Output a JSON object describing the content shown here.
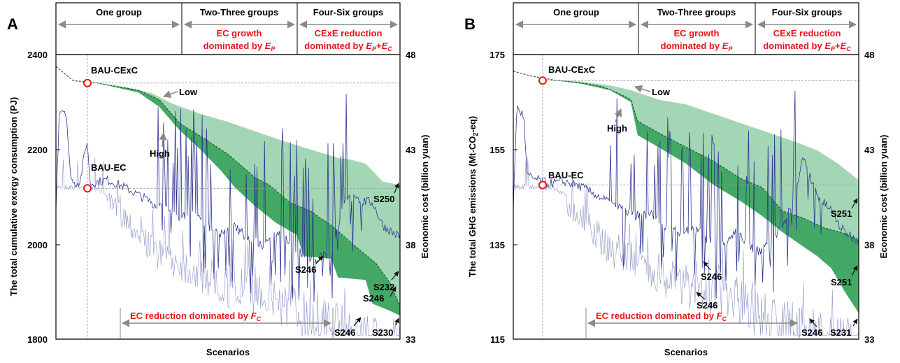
{
  "panels": [
    {
      "label": "A",
      "y_label": "The total cumulative exergy consumption (PJ)",
      "y2_label": "Economic cost (billion yuan)",
      "x_label": "Scenarios",
      "y_ticks": [
        "2400",
        "2200",
        "2000",
        "1800"
      ],
      "y2_ticks": [
        "48",
        "43",
        "38",
        "33"
      ],
      "groups": [
        "One group",
        "Two-Three groups",
        "Four-Six groups"
      ],
      "band_text": {
        "ec_growth_1": "EC growth",
        "ec_growth_2": "dominated by ",
        "ec_growth_sym": "E",
        "ec_growth_sub": "P",
        "cexe_1": "CExE reduction",
        "cexe_2": "dominated by ",
        "cexe_sym1": "E",
        "cexe_sub1": "P",
        "cexe_plus": "+",
        "cexe_sym2": "E",
        "cexe_sub2": "C"
      },
      "ec_reduction": {
        "text": "EC reduction dominated by ",
        "sym": "F",
        "sub": "C"
      },
      "callouts": {
        "bau_cexc": "BAU-CExC",
        "bau_ec": "BAU-EC",
        "low": "Low",
        "high": "High",
        "s1": "S250",
        "s2": "S246",
        "s3": "S232",
        "s4": "S246",
        "s5": "S246",
        "s6": "S230"
      }
    },
    {
      "label": "B",
      "y_label_pre": "The total GHG emissions (Mt-CO",
      "y_label_sub": "2",
      "y_label_post": "-eq)",
      "y2_label": "Economic cost (billion yuan)",
      "x_label": "Scenarios",
      "y_ticks": [
        "175",
        "155",
        "135",
        "115"
      ],
      "y2_ticks": [
        "48",
        "43",
        "38",
        "33"
      ],
      "groups": [
        "One group",
        "Two-Three groups",
        "Four-Six groups"
      ],
      "band_text": {
        "ec_growth_1": "EC growth",
        "ec_growth_2": "dominated by ",
        "ec_growth_sym": "E",
        "ec_growth_sub": "P",
        "cexe_1": "CExE reduction",
        "cexe_2": "dominated by ",
        "cexe_sym1": "E",
        "cexe_sub1": "P",
        "cexe_plus": "+",
        "cexe_sym2": "E",
        "cexe_sub2": "C"
      },
      "ec_reduction": {
        "text": "EC reduction dominated by ",
        "sym": "F",
        "sub": "C"
      },
      "callouts": {
        "bau_cexc": "BAU-CExC",
        "bau_ec": "BAU-EC",
        "low": "Low",
        "high": "High",
        "s1": "S251",
        "s2": "S246",
        "s3": "S251",
        "s4": "S246",
        "s5": "S246",
        "s6": "S231"
      }
    }
  ],
  "colors": {
    "light_green": "#a3d6b4",
    "dark_green": "#43a866",
    "cost_line": "#2c3591",
    "cost_line_light": "#8f96c9",
    "red": "#e8141b",
    "grid": "#9a9a9a"
  },
  "chart_data": [
    {
      "type": "area",
      "y_range": [
        1800,
        2400
      ],
      "y2_range": [
        33,
        48
      ],
      "bau_cexc": 2340,
      "bau_ec": 2118,
      "low_band": [
        [
          0,
          2375
        ],
        [
          0.05,
          2345
        ],
        [
          0.12,
          2340
        ],
        [
          0.2,
          2332
        ],
        [
          0.28,
          2318
        ],
        [
          0.34,
          2296
        ],
        [
          0.42,
          2275
        ],
        [
          0.5,
          2258
        ],
        [
          0.58,
          2238
        ],
        [
          0.66,
          2218
        ],
        [
          0.74,
          2200
        ],
        [
          0.82,
          2182
        ],
        [
          0.86,
          2178
        ],
        [
          0.9,
          2170
        ],
        [
          0.95,
          2132
        ],
        [
          1,
          2125
        ]
      ],
      "high_band": [
        [
          0,
          2375
        ],
        [
          0.05,
          2345
        ],
        [
          0.12,
          2340
        ],
        [
          0.18,
          2332
        ],
        [
          0.24,
          2325
        ],
        [
          0.3,
          2305
        ],
        [
          0.36,
          2255
        ],
        [
          0.42,
          2228
        ],
        [
          0.5,
          2190
        ],
        [
          0.58,
          2140
        ],
        [
          0.62,
          2125
        ],
        [
          0.68,
          2088
        ],
        [
          0.74,
          2070
        ],
        [
          0.8,
          2040
        ],
        [
          0.84,
          2015
        ],
        [
          0.88,
          1990
        ],
        [
          0.93,
          1960
        ],
        [
          0.97,
          1920
        ],
        [
          1,
          1870
        ]
      ],
      "min_band": [
        [
          0,
          2375
        ],
        [
          0.05,
          2345
        ],
        [
          0.12,
          2340
        ],
        [
          0.18,
          2330
        ],
        [
          0.24,
          2320
        ],
        [
          0.3,
          2290
        ],
        [
          0.36,
          2240
        ],
        [
          0.42,
          2200
        ],
        [
          0.48,
          2155
        ],
        [
          0.52,
          2120
        ],
        [
          0.58,
          2080
        ],
        [
          0.64,
          2045
        ],
        [
          0.7,
          2020
        ],
        [
          0.72,
          1975
        ],
        [
          0.8,
          1970
        ],
        [
          0.82,
          1930
        ],
        [
          0.9,
          1925
        ],
        [
          0.92,
          1875
        ],
        [
          0.97,
          1860
        ],
        [
          1,
          1850
        ]
      ],
      "cost_main": [
        [
          0,
          39.8
        ],
        [
          0.01,
          45.2
        ],
        [
          0.03,
          45.0
        ],
        [
          0.04,
          42.0
        ],
        [
          0.05,
          41.2
        ],
        [
          0.07,
          41.3
        ],
        [
          0.09,
          43.5
        ],
        [
          0.1,
          41.2
        ],
        [
          0.15,
          41.4
        ],
        [
          0.2,
          41.0
        ],
        [
          0.24,
          40.6
        ],
        [
          0.28,
          40.2
        ],
        [
          0.32,
          39.8
        ],
        [
          0.36,
          39.5
        ],
        [
          0.4,
          39.6
        ],
        [
          0.44,
          39.0
        ],
        [
          0.48,
          38.6
        ],
        [
          0.52,
          38.9
        ],
        [
          0.56,
          38.3
        ],
        [
          0.6,
          37.9
        ],
        [
          0.65,
          38.7
        ],
        [
          0.7,
          37.6
        ],
        [
          0.75,
          37.2
        ],
        [
          0.8,
          37.5
        ],
        [
          0.84,
          40.5
        ],
        [
          0.88,
          40.3
        ],
        [
          0.92,
          40.2
        ],
        [
          0.95,
          39.0
        ],
        [
          0.98,
          38.6
        ],
        [
          1,
          38.4
        ]
      ],
      "cost_light": [
        [
          0,
          41.2
        ],
        [
          0.12,
          41.1
        ],
        [
          0.2,
          40.2
        ],
        [
          0.28,
          38.5
        ],
        [
          0.36,
          38.0
        ],
        [
          0.44,
          37.4
        ],
        [
          0.52,
          36.8
        ],
        [
          0.6,
          37.0
        ],
        [
          0.68,
          36.2
        ],
        [
          0.76,
          35.4
        ],
        [
          0.84,
          34.8
        ],
        [
          0.92,
          34.4
        ],
        [
          1,
          34.0
        ]
      ]
    },
    {
      "type": "area",
      "y_range": [
        115,
        175
      ],
      "y2_range": [
        33,
        48
      ],
      "bau_cexc": 169.5,
      "bau_ec": 147.5,
      "low_band": [
        [
          0,
          171.5
        ],
        [
          0.05,
          170.5
        ],
        [
          0.12,
          169.6
        ],
        [
          0.2,
          169.3
        ],
        [
          0.28,
          168.5
        ],
        [
          0.34,
          167.5
        ],
        [
          0.42,
          165.5
        ],
        [
          0.5,
          164.5
        ],
        [
          0.58,
          162.5
        ],
        [
          0.66,
          160.5
        ],
        [
          0.74,
          158.5
        ],
        [
          0.82,
          156.5
        ],
        [
          0.88,
          154.8
        ],
        [
          0.94,
          152.0
        ],
        [
          1,
          148.5
        ]
      ],
      "high_band": [
        [
          0,
          171.5
        ],
        [
          0.05,
          170.5
        ],
        [
          0.12,
          169.6
        ],
        [
          0.2,
          169.0
        ],
        [
          0.26,
          168.2
        ],
        [
          0.3,
          167.0
        ],
        [
          0.34,
          165.5
        ],
        [
          0.36,
          161.0
        ],
        [
          0.42,
          158.5
        ],
        [
          0.5,
          155.5
        ],
        [
          0.58,
          152.5
        ],
        [
          0.66,
          148.8
        ],
        [
          0.72,
          147.0
        ],
        [
          0.78,
          142.0
        ],
        [
          0.84,
          140.5
        ],
        [
          0.9,
          138.5
        ],
        [
          0.95,
          137.5
        ],
        [
          1,
          136.0
        ]
      ],
      "min_band": [
        [
          0,
          171.5
        ],
        [
          0.05,
          170.5
        ],
        [
          0.12,
          169.6
        ],
        [
          0.2,
          168.8
        ],
        [
          0.28,
          167.5
        ],
        [
          0.34,
          165.0
        ],
        [
          0.36,
          158.0
        ],
        [
          0.42,
          155.5
        ],
        [
          0.5,
          152.0
        ],
        [
          0.58,
          147.5
        ],
        [
          0.66,
          144.0
        ],
        [
          0.72,
          141.0
        ],
        [
          0.78,
          137.5
        ],
        [
          0.84,
          134.5
        ],
        [
          0.88,
          132.5
        ],
        [
          0.92,
          130.0
        ],
        [
          0.96,
          125.0
        ],
        [
          1,
          120.5
        ]
      ],
      "cost_main": [
        [
          0,
          39.8
        ],
        [
          0.01,
          45.2
        ],
        [
          0.03,
          44.8
        ],
        [
          0.04,
          41.6
        ],
        [
          0.07,
          41.4
        ],
        [
          0.1,
          41.2
        ],
        [
          0.15,
          41.3
        ],
        [
          0.2,
          41.0
        ],
        [
          0.24,
          40.6
        ],
        [
          0.28,
          40.2
        ],
        [
          0.32,
          39.8
        ],
        [
          0.36,
          39.5
        ],
        [
          0.4,
          39.6
        ],
        [
          0.44,
          39.0
        ],
        [
          0.48,
          38.6
        ],
        [
          0.52,
          38.9
        ],
        [
          0.56,
          38.3
        ],
        [
          0.6,
          37.9
        ],
        [
          0.65,
          38.7
        ],
        [
          0.7,
          37.6
        ],
        [
          0.75,
          38.0
        ],
        [
          0.8,
          39.8
        ],
        [
          0.84,
          42.6
        ],
        [
          0.88,
          40.5
        ],
        [
          0.92,
          39.8
        ],
        [
          0.95,
          38.8
        ],
        [
          0.98,
          38.4
        ],
        [
          1,
          38.2
        ]
      ],
      "cost_light": [
        [
          0,
          41.2
        ],
        [
          0.12,
          41.1
        ],
        [
          0.2,
          40.2
        ],
        [
          0.28,
          38.5
        ],
        [
          0.36,
          38.0
        ],
        [
          0.44,
          37.4
        ],
        [
          0.52,
          36.8
        ],
        [
          0.6,
          37.0
        ],
        [
          0.68,
          36.2
        ],
        [
          0.76,
          35.4
        ],
        [
          0.84,
          34.8
        ],
        [
          0.92,
          34.4
        ],
        [
          1,
          34.0
        ]
      ]
    }
  ]
}
